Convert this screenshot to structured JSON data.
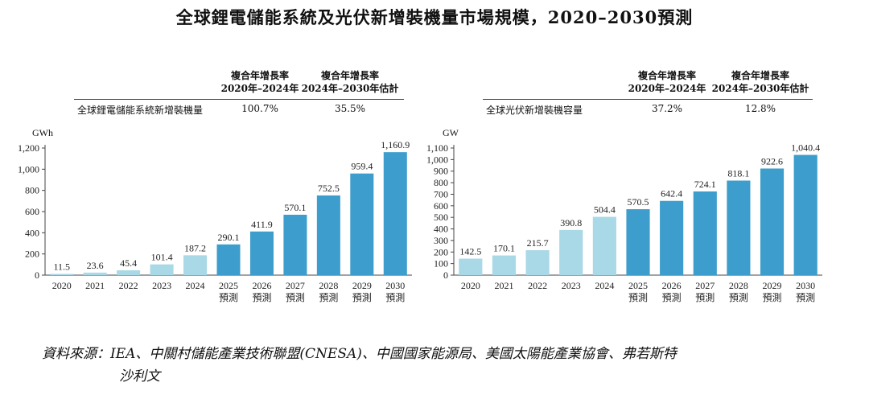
{
  "title": "全球鋰電儲能系統及光伏新增裝機量市場規模，2020–2030預測",
  "left_table": {
    "head1_line1": "複合年增長率",
    "head1_line2": "2020年–2024年",
    "head2_line1": "複合年增長率",
    "head2_line2": "2024年–2030年估計",
    "row_label": "全球鋰電儲能系統新增裝機量",
    "val1": "100.7%",
    "val2": "35.5%"
  },
  "right_table": {
    "head1_line1": "複合年增長率",
    "head1_line2": "2020年–2024年",
    "head2_line1": "複合年增長率",
    "head2_line2": "2024年–2030年估計",
    "row_label": "全球光伏新增裝機容量",
    "val1": "37.2%",
    "val2": "12.8%"
  },
  "source_label": "資料來源：",
  "source_line1": "IEA、中關村儲能產業技術聯盟(CNESA)、中國國家能源局、美國太陽能產業協會、弗若斯特",
  "source_line2": "沙利文",
  "colors": {
    "historical": "#a9d8e6",
    "forecast": "#3d9dcc",
    "axis": "#444444"
  },
  "chart_data": [
    {
      "type": "bar",
      "unit_label": "GWh",
      "categories": [
        "2020",
        "2021",
        "2022",
        "2023",
        "2024",
        "2025",
        "2026",
        "2027",
        "2028",
        "2029",
        "2030"
      ],
      "forecast_label": "預測",
      "forecast_from_index": 5,
      "values": [
        11.5,
        23.6,
        45.4,
        101.4,
        187.2,
        290.1,
        411.9,
        570.1,
        752.5,
        959.4,
        1160.9
      ],
      "value_labels": [
        "11.5",
        "23.6",
        "45.4",
        "101.4",
        "187.2",
        "290.1",
        "411.9",
        "570.1",
        "752.5",
        "959.4",
        "1,160.9"
      ],
      "ylim": [
        0,
        1200
      ],
      "yticks": [
        0,
        200,
        400,
        600,
        800,
        1000,
        1200
      ],
      "ytick_labels": [
        "0",
        "200",
        "400",
        "600",
        "800",
        "1,000",
        "1,200"
      ]
    },
    {
      "type": "bar",
      "unit_label": "GW",
      "categories": [
        "2020",
        "2021",
        "2022",
        "2023",
        "2024",
        "2025",
        "2026",
        "2027",
        "2028",
        "2029",
        "2030"
      ],
      "forecast_label": "預測",
      "forecast_from_index": 5,
      "values": [
        142.5,
        170.1,
        215.7,
        390.8,
        504.4,
        570.5,
        642.4,
        724.1,
        818.1,
        922.6,
        1040.4
      ],
      "value_labels": [
        "142.5",
        "170.1",
        "215.7",
        "390.8",
        "504.4",
        "570.5",
        "642.4",
        "724.1",
        "818.1",
        "922.6",
        "1,040.4"
      ],
      "ylim": [
        0,
        1100
      ],
      "yticks": [
        0,
        100,
        200,
        300,
        400,
        500,
        600,
        700,
        800,
        900,
        1000,
        1100
      ],
      "ytick_labels": [
        "0",
        "100",
        "200",
        "300",
        "400",
        "500",
        "600",
        "700",
        "800",
        "900",
        "1,000",
        "1,100"
      ]
    }
  ]
}
